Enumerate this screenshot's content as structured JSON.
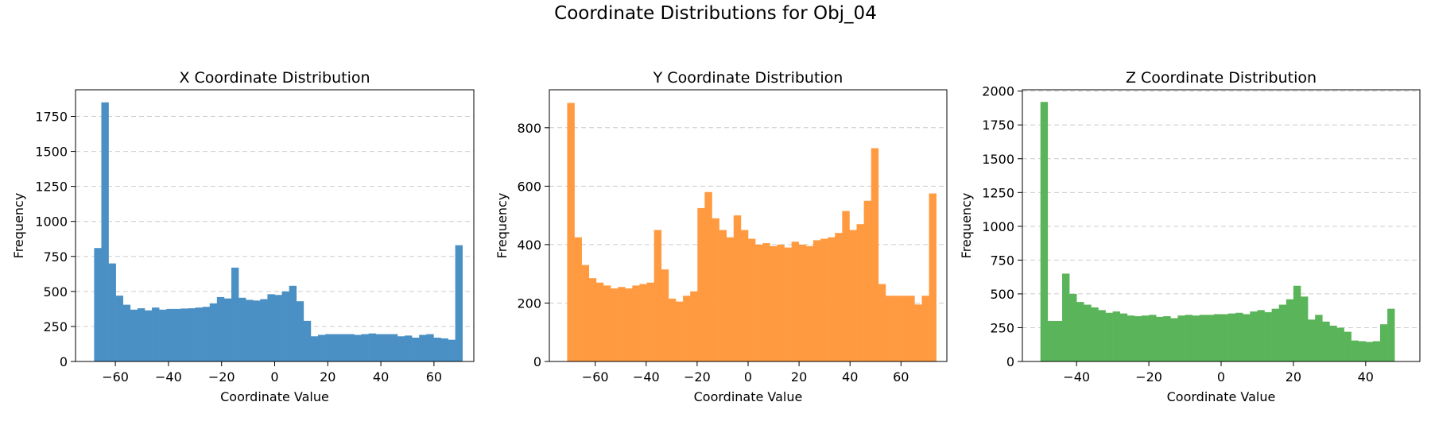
{
  "figure": {
    "suptitle": "Coordinate Distributions for Obj_04"
  },
  "chart_data": [
    {
      "type": "bar",
      "title": "X Coordinate Distribution",
      "xlabel": "Coordinate Value",
      "ylabel": "Frequency",
      "color": "#4a90c4",
      "xlim": [
        -75,
        75
      ],
      "ylim": [
        0,
        1940
      ],
      "xticks": [
        -60,
        -40,
        -20,
        0,
        20,
        40,
        60
      ],
      "yticks": [
        0,
        250,
        500,
        750,
        1000,
        1250,
        1500,
        1750
      ],
      "grid": "y-dashed",
      "bin_start": -68,
      "bin_width": 2.72,
      "values": [
        810,
        1850,
        700,
        470,
        405,
        370,
        380,
        365,
        385,
        370,
        375,
        375,
        378,
        380,
        385,
        390,
        415,
        460,
        450,
        670,
        455,
        440,
        435,
        445,
        480,
        475,
        500,
        540,
        430,
        290,
        180,
        190,
        195,
        195,
        195,
        195,
        190,
        195,
        200,
        195,
        195,
        195,
        180,
        185,
        170,
        190,
        195,
        170,
        165,
        155,
        830
      ]
    },
    {
      "type": "bar",
      "title": "Y Coordinate Distribution",
      "xlabel": "Coordinate Value",
      "ylabel": "Frequency",
      "color": "#ff9a40",
      "xlim": [
        -78,
        78
      ],
      "ylim": [
        0,
        930
      ],
      "xticks": [
        -60,
        -40,
        -20,
        0,
        20,
        40,
        60
      ],
      "yticks": [
        0,
        200,
        400,
        600,
        800
      ],
      "grid": "y-dashed",
      "bin_start": -71,
      "bin_width": 2.84,
      "values": [
        885,
        425,
        330,
        285,
        270,
        260,
        250,
        255,
        250,
        260,
        265,
        270,
        450,
        315,
        215,
        205,
        225,
        240,
        525,
        580,
        490,
        450,
        425,
        500,
        450,
        420,
        400,
        405,
        395,
        400,
        390,
        410,
        400,
        395,
        415,
        420,
        425,
        440,
        515,
        450,
        470,
        550,
        730,
        265,
        225,
        225,
        225,
        225,
        195,
        225,
        575
      ]
    },
    {
      "type": "bar",
      "title": "Z Coordinate Distribution",
      "xlabel": "Coordinate Value",
      "ylabel": "Frequency",
      "color": "#5ab55a",
      "xlim": [
        -55,
        55
      ],
      "ylim": [
        0,
        2010
      ],
      "xticks": [
        -40,
        -20,
        0,
        20,
        40
      ],
      "yticks": [
        0,
        250,
        500,
        750,
        1000,
        1250,
        1500,
        1750,
        2000
      ],
      "grid": "y-dashed",
      "bin_start": -50,
      "bin_width": 2,
      "values": [
        1920,
        300,
        300,
        650,
        500,
        440,
        420,
        400,
        380,
        360,
        370,
        355,
        340,
        335,
        340,
        345,
        330,
        335,
        320,
        340,
        345,
        340,
        345,
        345,
        350,
        350,
        355,
        360,
        350,
        370,
        380,
        365,
        390,
        420,
        460,
        560,
        480,
        310,
        345,
        295,
        265,
        250,
        220,
        155,
        150,
        145,
        150,
        275,
        390
      ]
    }
  ]
}
